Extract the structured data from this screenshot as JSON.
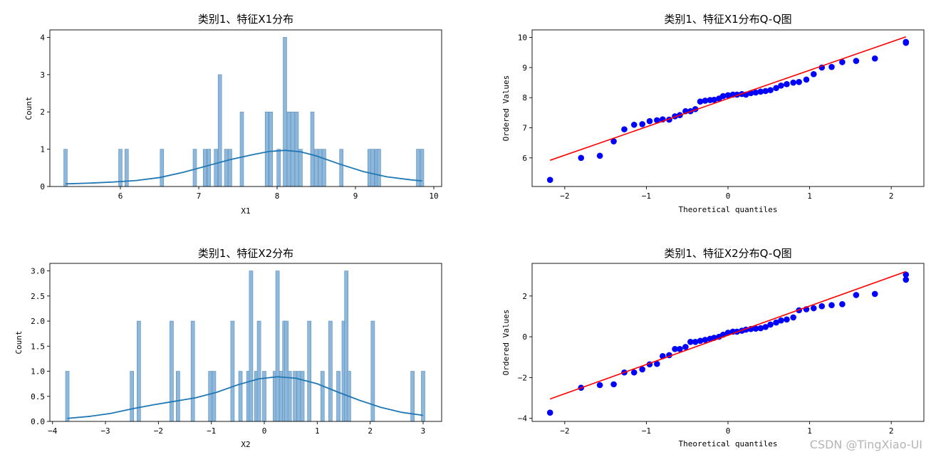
{
  "watermark": "CSDN @TingXiao-UI",
  "chart_data": [
    {
      "type": "histogram",
      "title": "类别1、特征X1分布",
      "xlabel": "X1",
      "ylabel": "Count",
      "xlim": [
        5.1,
        10.1
      ],
      "ylim": [
        0,
        4.2
      ],
      "xticks": [
        6,
        7,
        8,
        9,
        10
      ],
      "yticks": [
        0,
        1,
        2,
        3,
        4
      ],
      "bar_color": "#8db8db",
      "bar_edge": "#5a8fbd",
      "line_color": "#1f77b4",
      "bar_width": 0.045,
      "bars": [
        {
          "x": 5.3,
          "count": 1
        },
        {
          "x": 6.0,
          "count": 1
        },
        {
          "x": 6.08,
          "count": 1
        },
        {
          "x": 6.53,
          "count": 1
        },
        {
          "x": 6.95,
          "count": 1
        },
        {
          "x": 7.08,
          "count": 1
        },
        {
          "x": 7.13,
          "count": 1
        },
        {
          "x": 7.22,
          "count": 1
        },
        {
          "x": 7.27,
          "count": 3
        },
        {
          "x": 7.35,
          "count": 1
        },
        {
          "x": 7.4,
          "count": 1
        },
        {
          "x": 7.55,
          "count": 2
        },
        {
          "x": 7.87,
          "count": 2
        },
        {
          "x": 7.92,
          "count": 2
        },
        {
          "x": 8.02,
          "count": 1
        },
        {
          "x": 8.1,
          "count": 4
        },
        {
          "x": 8.15,
          "count": 2
        },
        {
          "x": 8.2,
          "count": 2
        },
        {
          "x": 8.25,
          "count": 2
        },
        {
          "x": 8.3,
          "count": 1
        },
        {
          "x": 8.45,
          "count": 2
        },
        {
          "x": 8.5,
          "count": 1
        },
        {
          "x": 8.55,
          "count": 1
        },
        {
          "x": 8.6,
          "count": 1
        },
        {
          "x": 8.82,
          "count": 1
        },
        {
          "x": 9.18,
          "count": 1
        },
        {
          "x": 9.22,
          "count": 1
        },
        {
          "x": 9.27,
          "count": 1
        },
        {
          "x": 9.3,
          "count": 1
        },
        {
          "x": 9.8,
          "count": 1
        },
        {
          "x": 9.85,
          "count": 1
        }
      ],
      "kde": {
        "x": [
          5.3,
          5.6,
          5.9,
          6.2,
          6.5,
          6.8,
          7.1,
          7.4,
          7.7,
          7.9,
          8.1,
          8.3,
          8.5,
          8.8,
          9.1,
          9.4,
          9.7,
          9.85
        ],
        "y": [
          0.07,
          0.09,
          0.12,
          0.16,
          0.24,
          0.38,
          0.55,
          0.72,
          0.86,
          0.94,
          0.97,
          0.93,
          0.82,
          0.6,
          0.4,
          0.26,
          0.18,
          0.15
        ]
      }
    },
    {
      "type": "scatter",
      "title": "类别1、特征X1分布Q-Q图",
      "xlabel": "Theoretical quantiles",
      "ylabel": "Ordered Values",
      "xlim": [
        -2.4,
        2.4
      ],
      "ylim": [
        5.05,
        10.25
      ],
      "xticks": [
        -2,
        -1,
        0,
        1,
        2
      ],
      "yticks": [
        6,
        7,
        8,
        9,
        10
      ],
      "point_color": "#0000ff",
      "line_color": "#ff0000",
      "fit_line": {
        "x": [
          -2.18,
          2.18
        ],
        "y": [
          5.92,
          10.02
        ]
      },
      "points": [
        [
          -2.18,
          5.27
        ],
        [
          -1.8,
          6.0
        ],
        [
          -1.57,
          6.07
        ],
        [
          -1.4,
          6.55
        ],
        [
          -1.27,
          6.95
        ],
        [
          -1.15,
          7.1
        ],
        [
          -1.05,
          7.12
        ],
        [
          -0.96,
          7.22
        ],
        [
          -0.87,
          7.25
        ],
        [
          -0.8,
          7.28
        ],
        [
          -0.72,
          7.27
        ],
        [
          -0.65,
          7.38
        ],
        [
          -0.59,
          7.42
        ],
        [
          -0.52,
          7.55
        ],
        [
          -0.46,
          7.55
        ],
        [
          -0.4,
          7.62
        ],
        [
          -0.34,
          7.87
        ],
        [
          -0.28,
          7.9
        ],
        [
          -0.22,
          7.92
        ],
        [
          -0.17,
          7.93
        ],
        [
          -0.11,
          7.97
        ],
        [
          -0.06,
          8.05
        ],
        [
          0.0,
          8.08
        ],
        [
          0.06,
          8.1
        ],
        [
          0.11,
          8.1
        ],
        [
          0.17,
          8.12
        ],
        [
          0.22,
          8.1
        ],
        [
          0.28,
          8.15
        ],
        [
          0.34,
          8.17
        ],
        [
          0.4,
          8.2
        ],
        [
          0.46,
          8.22
        ],
        [
          0.52,
          8.25
        ],
        [
          0.59,
          8.32
        ],
        [
          0.65,
          8.4
        ],
        [
          0.72,
          8.45
        ],
        [
          0.8,
          8.5
        ],
        [
          0.87,
          8.52
        ],
        [
          0.96,
          8.6
        ],
        [
          1.05,
          8.78
        ],
        [
          1.15,
          9.0
        ],
        [
          1.27,
          9.02
        ],
        [
          1.4,
          9.18
        ],
        [
          1.57,
          9.22
        ],
        [
          1.8,
          9.3
        ],
        [
          2.18,
          9.82
        ],
        [
          2.18,
          9.85
        ]
      ]
    },
    {
      "type": "histogram",
      "title": "类别1、特征X2分布",
      "xlabel": "X2",
      "ylabel": "Count",
      "xlim": [
        -4.05,
        3.35
      ],
      "ylim": [
        0,
        3.15
      ],
      "xticks": [
        -4,
        -3,
        -2,
        -1,
        0,
        1,
        2,
        3
      ],
      "yticks": [
        0.0,
        0.5,
        1.0,
        1.5,
        2.0,
        2.5,
        3.0
      ],
      "ytick_labels": [
        "0.0",
        "0.5",
        "1.0",
        "1.5",
        "2.0",
        "2.5",
        "3.0"
      ],
      "bar_color": "#8db8db",
      "bar_edge": "#5a8fbd",
      "line_color": "#1f77b4",
      "bar_width": 0.068,
      "bars": [
        {
          "x": -3.72,
          "count": 1
        },
        {
          "x": -2.5,
          "count": 1
        },
        {
          "x": -2.37,
          "count": 2
        },
        {
          "x": -1.75,
          "count": 2
        },
        {
          "x": -1.63,
          "count": 1
        },
        {
          "x": -1.35,
          "count": 2
        },
        {
          "x": -1.02,
          "count": 1
        },
        {
          "x": -0.95,
          "count": 1
        },
        {
          "x": -0.6,
          "count": 2
        },
        {
          "x": -0.45,
          "count": 1
        },
        {
          "x": -0.3,
          "count": 1
        },
        {
          "x": -0.25,
          "count": 3
        },
        {
          "x": -0.15,
          "count": 1
        },
        {
          "x": -0.1,
          "count": 2
        },
        {
          "x": 0.0,
          "count": 1
        },
        {
          "x": 0.2,
          "count": 1
        },
        {
          "x": 0.25,
          "count": 3
        },
        {
          "x": 0.32,
          "count": 1
        },
        {
          "x": 0.38,
          "count": 2
        },
        {
          "x": 0.42,
          "count": 2
        },
        {
          "x": 0.48,
          "count": 1
        },
        {
          "x": 0.58,
          "count": 1
        },
        {
          "x": 0.65,
          "count": 1
        },
        {
          "x": 0.72,
          "count": 1
        },
        {
          "x": 0.85,
          "count": 2
        },
        {
          "x": 1.1,
          "count": 1
        },
        {
          "x": 1.25,
          "count": 2
        },
        {
          "x": 1.4,
          "count": 1
        },
        {
          "x": 1.5,
          "count": 2
        },
        {
          "x": 1.55,
          "count": 3
        },
        {
          "x": 1.6,
          "count": 1
        },
        {
          "x": 2.05,
          "count": 2
        },
        {
          "x": 2.8,
          "count": 1
        },
        {
          "x": 3.0,
          "count": 1
        }
      ],
      "kde": {
        "x": [
          -3.72,
          -3.3,
          -2.9,
          -2.5,
          -2.1,
          -1.7,
          -1.3,
          -0.9,
          -0.5,
          -0.1,
          0.25,
          0.6,
          1.0,
          1.4,
          1.8,
          2.2,
          2.6,
          3.0
        ],
        "y": [
          0.06,
          0.1,
          0.16,
          0.25,
          0.33,
          0.4,
          0.47,
          0.58,
          0.73,
          0.85,
          0.89,
          0.86,
          0.75,
          0.58,
          0.42,
          0.28,
          0.18,
          0.12
        ]
      }
    },
    {
      "type": "scatter",
      "title": "类别1、特征X2分布Q-Q图",
      "xlabel": "Theoretical quantiles",
      "ylabel": "Ordered Values",
      "xlim": [
        -2.4,
        2.4
      ],
      "ylim": [
        -4.15,
        3.6
      ],
      "xticks": [
        -2,
        -1,
        0,
        1,
        2
      ],
      "yticks": [
        -4,
        -2,
        0,
        2
      ],
      "point_color": "#0000ff",
      "line_color": "#ff0000",
      "fit_line": {
        "x": [
          -2.18,
          2.18
        ],
        "y": [
          -3.05,
          3.2
        ]
      },
      "points": [
        [
          -2.18,
          -3.72
        ],
        [
          -1.8,
          -2.5
        ],
        [
          -1.57,
          -2.37
        ],
        [
          -1.4,
          -2.33
        ],
        [
          -1.27,
          -1.75
        ],
        [
          -1.15,
          -1.75
        ],
        [
          -1.05,
          -1.6
        ],
        [
          -0.96,
          -1.35
        ],
        [
          -0.87,
          -1.33
        ],
        [
          -0.8,
          -0.95
        ],
        [
          -0.72,
          -0.9
        ],
        [
          -0.65,
          -0.6
        ],
        [
          -0.59,
          -0.6
        ],
        [
          -0.52,
          -0.5
        ],
        [
          -0.46,
          -0.25
        ],
        [
          -0.4,
          -0.25
        ],
        [
          -0.34,
          -0.2
        ],
        [
          -0.28,
          -0.15
        ],
        [
          -0.22,
          -0.1
        ],
        [
          -0.17,
          -0.05
        ],
        [
          -0.11,
          0.0
        ],
        [
          -0.06,
          0.1
        ],
        [
          0.0,
          0.2
        ],
        [
          0.06,
          0.25
        ],
        [
          0.11,
          0.25
        ],
        [
          0.17,
          0.3
        ],
        [
          0.22,
          0.35
        ],
        [
          0.28,
          0.38
        ],
        [
          0.34,
          0.4
        ],
        [
          0.4,
          0.42
        ],
        [
          0.46,
          0.48
        ],
        [
          0.52,
          0.6
        ],
        [
          0.59,
          0.7
        ],
        [
          0.65,
          0.8
        ],
        [
          0.72,
          0.85
        ],
        [
          0.8,
          0.95
        ],
        [
          0.87,
          1.3
        ],
        [
          0.96,
          1.35
        ],
        [
          1.05,
          1.4
        ],
        [
          1.15,
          1.5
        ],
        [
          1.27,
          1.55
        ],
        [
          1.4,
          1.6
        ],
        [
          1.57,
          2.05
        ],
        [
          1.8,
          2.1
        ],
        [
          2.18,
          2.8
        ],
        [
          2.18,
          3.05
        ]
      ]
    }
  ]
}
